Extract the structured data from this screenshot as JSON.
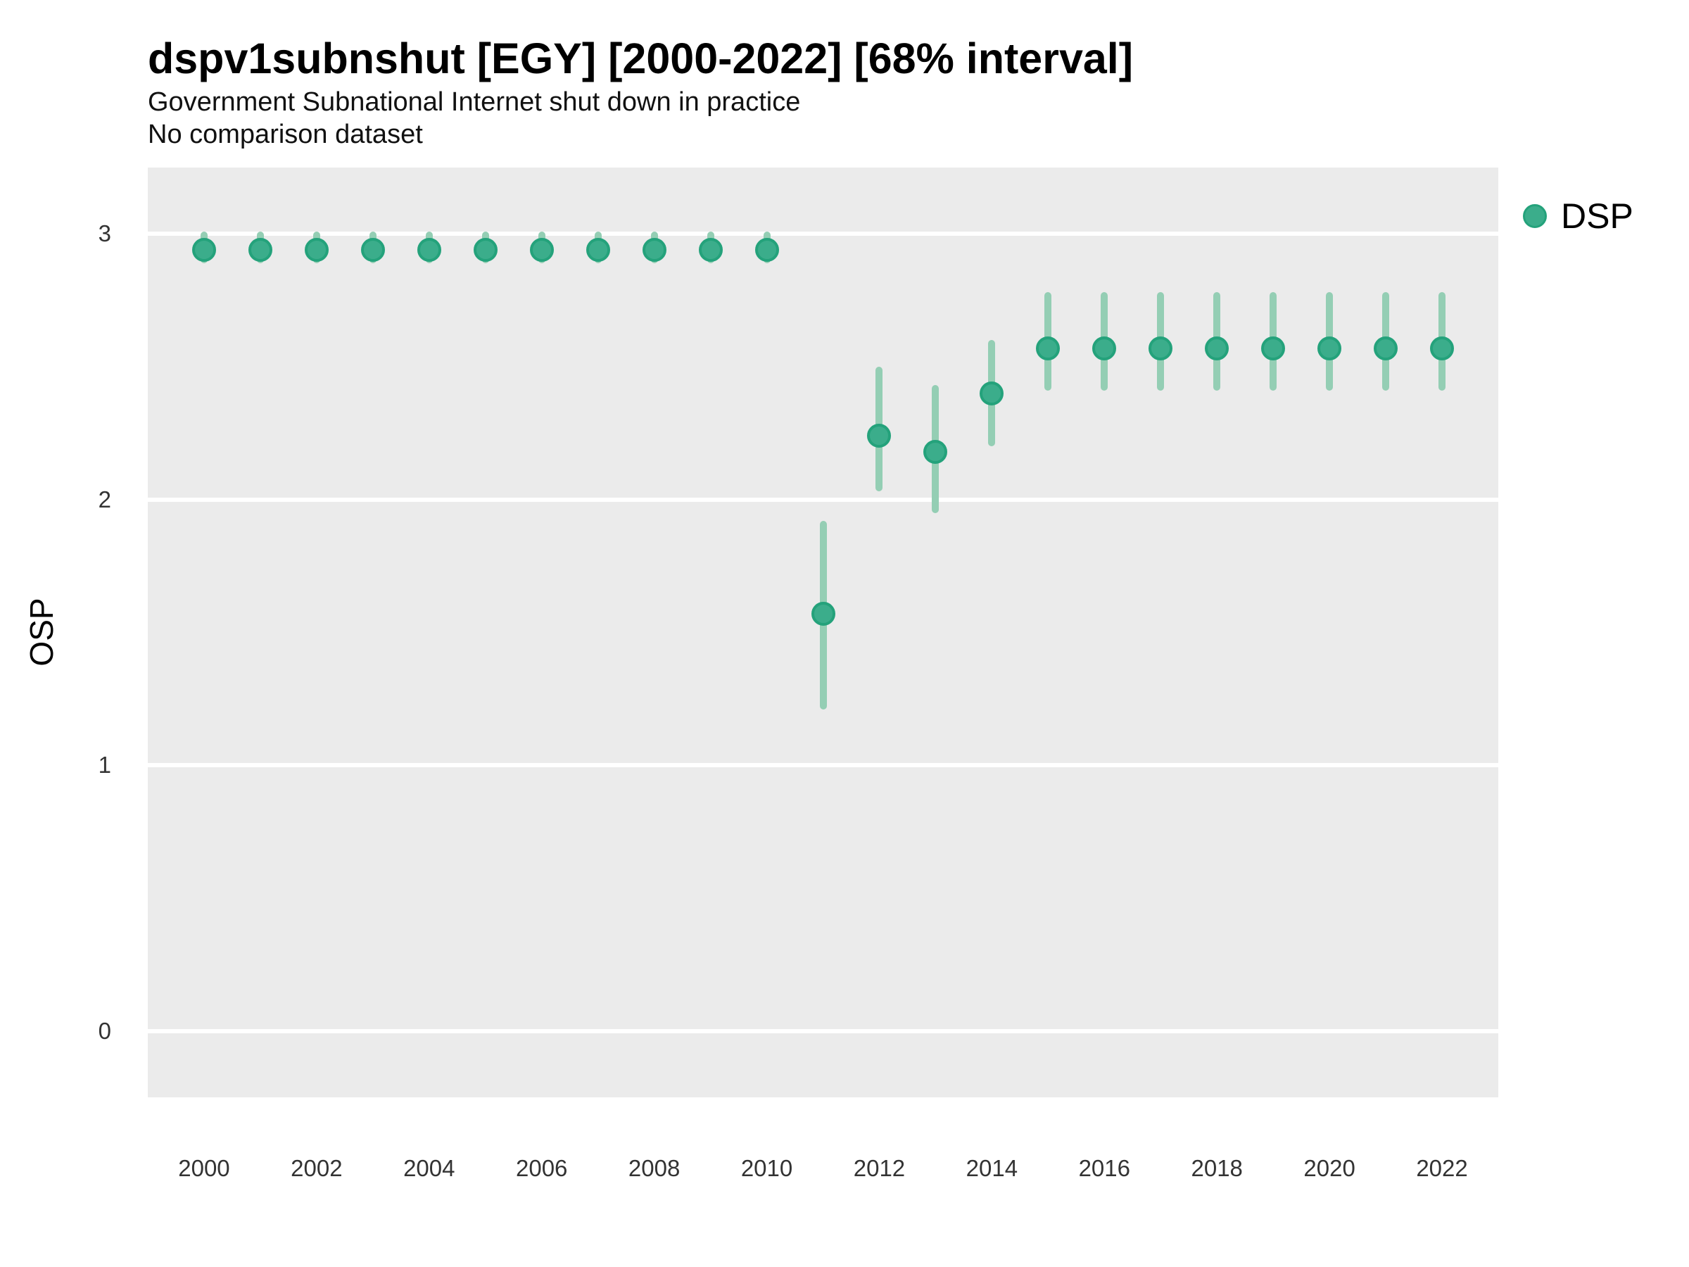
{
  "header": {
    "title": "dspv1subnshut [EGY] [2000-2022] [68% interval]",
    "subtitle": "Government Subnational Internet shut down in practice",
    "comparison_note": "No comparison dataset"
  },
  "legend": {
    "items": [
      {
        "label": "DSP"
      }
    ]
  },
  "colors": {
    "point_fill": "#3bad8b",
    "point_stroke": "#24a27b",
    "interval_bar": "#94ceb4",
    "panel_bg": "#ebebeb",
    "gridline": "#ffffff",
    "title_text": "#000000",
    "tick_text": "#333333"
  },
  "axes": {
    "y_label": "OSP",
    "y_domain": [
      -0.25,
      3.25
    ],
    "x_domain": [
      1999,
      2023
    ],
    "grid": "horizontal-only",
    "y_ticks": [
      {
        "label": "0",
        "value": 0
      },
      {
        "label": "1",
        "value": 1
      },
      {
        "label": "2",
        "value": 2
      },
      {
        "label": "3",
        "value": 3
      }
    ],
    "x_ticks": [
      {
        "label": "2000",
        "value": 2000
      },
      {
        "label": "2002",
        "value": 2002
      },
      {
        "label": "2004",
        "value": 2004
      },
      {
        "label": "2006",
        "value": 2006
      },
      {
        "label": "2008",
        "value": 2008
      },
      {
        "label": "2010",
        "value": 2010
      },
      {
        "label": "2012",
        "value": 2012
      },
      {
        "label": "2014",
        "value": 2014
      },
      {
        "label": "2016",
        "value": 2016
      },
      {
        "label": "2018",
        "value": 2018
      },
      {
        "label": "2020",
        "value": 2020
      },
      {
        "label": "2022",
        "value": 2022
      }
    ]
  },
  "chart_data": {
    "type": "scatter",
    "mark": "pointrange",
    "title": "dspv1subnshut [EGY] [2000-2022] [68% interval]",
    "subtitle": "Government Subnational Internet shut down in practice",
    "note": "No comparison dataset",
    "interval_level": "68%",
    "xlabel": "",
    "ylabel": "OSP",
    "ylim": [
      -0.25,
      3.25
    ],
    "xlim": [
      1999,
      2023
    ],
    "legend_position": "right",
    "series": [
      {
        "name": "DSP",
        "points": [
          {
            "year": 2000,
            "value": 2.94,
            "low": 2.89,
            "high": 3.01
          },
          {
            "year": 2001,
            "value": 2.94,
            "low": 2.89,
            "high": 3.01
          },
          {
            "year": 2002,
            "value": 2.94,
            "low": 2.89,
            "high": 3.01
          },
          {
            "year": 2003,
            "value": 2.94,
            "low": 2.89,
            "high": 3.01
          },
          {
            "year": 2004,
            "value": 2.94,
            "low": 2.89,
            "high": 3.01
          },
          {
            "year": 2005,
            "value": 2.94,
            "low": 2.89,
            "high": 3.01
          },
          {
            "year": 2006,
            "value": 2.94,
            "low": 2.89,
            "high": 3.01
          },
          {
            "year": 2007,
            "value": 2.94,
            "low": 2.89,
            "high": 3.01
          },
          {
            "year": 2008,
            "value": 2.94,
            "low": 2.89,
            "high": 3.01
          },
          {
            "year": 2009,
            "value": 2.94,
            "low": 2.89,
            "high": 3.01
          },
          {
            "year": 2010,
            "value": 2.94,
            "low": 2.89,
            "high": 3.01
          },
          {
            "year": 2011,
            "value": 1.57,
            "low": 1.21,
            "high": 1.92
          },
          {
            "year": 2012,
            "value": 2.24,
            "low": 2.03,
            "high": 2.5
          },
          {
            "year": 2013,
            "value": 2.18,
            "low": 1.95,
            "high": 2.43
          },
          {
            "year": 2014,
            "value": 2.4,
            "low": 2.2,
            "high": 2.6
          },
          {
            "year": 2015,
            "value": 2.57,
            "low": 2.41,
            "high": 2.78
          },
          {
            "year": 2016,
            "value": 2.57,
            "low": 2.41,
            "high": 2.78
          },
          {
            "year": 2017,
            "value": 2.57,
            "low": 2.41,
            "high": 2.78
          },
          {
            "year": 2018,
            "value": 2.57,
            "low": 2.41,
            "high": 2.78
          },
          {
            "year": 2019,
            "value": 2.57,
            "low": 2.41,
            "high": 2.78
          },
          {
            "year": 2020,
            "value": 2.57,
            "low": 2.41,
            "high": 2.78
          },
          {
            "year": 2021,
            "value": 2.57,
            "low": 2.41,
            "high": 2.78
          },
          {
            "year": 2022,
            "value": 2.57,
            "low": 2.41,
            "high": 2.78
          }
        ]
      }
    ]
  }
}
